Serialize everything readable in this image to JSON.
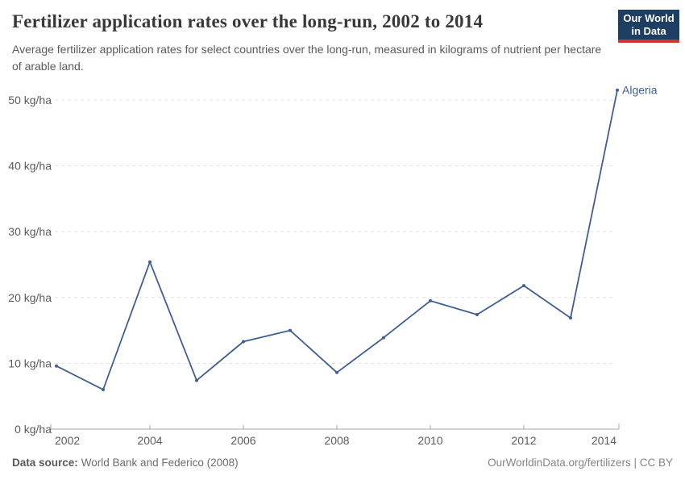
{
  "header": {
    "title": "Fertilizer application rates over the long-run, 2002 to 2014",
    "subtitle": "Average fertilizer application rates for select countries over the long-run, measured in kilograms of nutrient per hectare of arable land.",
    "logo": {
      "line1": "Our World",
      "line2": "in Data"
    }
  },
  "footer": {
    "source_label": "Data source:",
    "source_text": "World Bank and Federico (2008)",
    "credit": "OurWorldinData.org/fertilizers | CC BY"
  },
  "colors": {
    "series_blue": "#3f5e96",
    "logo_navy": "#1d3d63",
    "logo_red": "#d0372c",
    "gridline": "#e1e1e1",
    "axis": "#a6a6a6",
    "tick_text": "#5c5c5c"
  },
  "chart_data": {
    "type": "line",
    "title": "Fertilizer application rates over the long-run, 2002 to 2014",
    "unit": "kg/ha",
    "x": [
      2002,
      2003,
      2004,
      2005,
      2006,
      2007,
      2008,
      2009,
      2010,
      2011,
      2012,
      2013,
      2014
    ],
    "series": [
      {
        "name": "Algeria",
        "color": "#3f5e96",
        "values": [
          9.6,
          6.0,
          25.4,
          7.4,
          13.3,
          15.0,
          8.6,
          13.9,
          19.5,
          17.4,
          21.8,
          16.9,
          51.5
        ]
      }
    ],
    "end_label": "Algeria",
    "xlabel": "",
    "ylabel": "",
    "ylim": [
      0,
      50
    ],
    "xlim": [
      2002,
      2014
    ],
    "y_ticks": [
      0,
      10,
      20,
      30,
      40,
      50
    ],
    "y_tick_labels": [
      "0 kg/ha",
      "10 kg/ha",
      "20 kg/ha",
      "30 kg/ha",
      "40 kg/ha",
      "50 kg/ha"
    ],
    "x_ticks": [
      2002,
      2004,
      2006,
      2008,
      2010,
      2012,
      2014
    ],
    "x_tick_labels": [
      "2002",
      "2004",
      "2006",
      "2008",
      "2010",
      "2012",
      "2014"
    ],
    "grid": "horizontal-dashed",
    "legend_position": "end-of-line"
  }
}
